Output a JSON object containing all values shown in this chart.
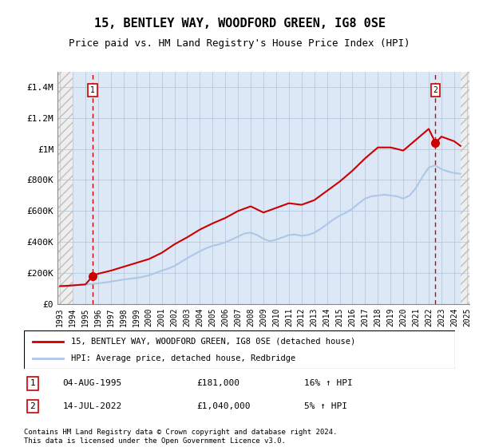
{
  "title": "15, BENTLEY WAY, WOODFORD GREEN, IG8 0SE",
  "subtitle": "Price paid vs. HM Land Registry's House Price Index (HPI)",
  "legend_line1": "15, BENTLEY WAY, WOODFORD GREEN, IG8 0SE (detached house)",
  "legend_line2": "HPI: Average price, detached house, Redbridge",
  "annotation1": {
    "num": "1",
    "date": "04-AUG-1995",
    "price": "£181,000",
    "hpi": "16% ↑ HPI",
    "x_year": 1995.58,
    "y_val": 181000
  },
  "annotation2": {
    "num": "2",
    "date": "14-JUL-2022",
    "price": "£1,040,000",
    "hpi": "5% ↑ HPI",
    "x_year": 2022.53,
    "y_val": 1040000
  },
  "footer1": "Contains HM Land Registry data © Crown copyright and database right 2024.",
  "footer2": "This data is licensed under the Open Government Licence v3.0.",
  "ylim": [
    0,
    1500000
  ],
  "yticks": [
    0,
    200000,
    400000,
    600000,
    800000,
    1000000,
    1200000,
    1400000
  ],
  "ytick_labels": [
    "£0",
    "£200K",
    "£400K",
    "£600K",
    "£800K",
    "£1M",
    "£1.2M",
    "£1.4M"
  ],
  "hpi_color": "#aec6e8",
  "price_color": "#cc0000",
  "dashed_color": "#cc0000",
  "background_hatch_color": "#d0d0d0",
  "grid_color": "#b0c4de",
  "hpi_years": [
    1993,
    1993.5,
    1994,
    1994.5,
    1995,
    1995.5,
    1996,
    1996.5,
    1997,
    1997.5,
    1998,
    1998.5,
    1999,
    1999.5,
    2000,
    2000.5,
    2001,
    2001.5,
    2002,
    2002.5,
    2003,
    2003.5,
    2004,
    2004.5,
    2005,
    2005.5,
    2006,
    2006.5,
    2007,
    2007.5,
    2008,
    2008.5,
    2009,
    2009.5,
    2010,
    2010.5,
    2011,
    2011.5,
    2012,
    2012.5,
    2013,
    2013.5,
    2014,
    2014.5,
    2015,
    2015.5,
    2016,
    2016.5,
    2017,
    2017.5,
    2018,
    2018.5,
    2019,
    2019.5,
    2020,
    2020.5,
    2021,
    2021.5,
    2022,
    2022.5,
    2023,
    2023.5,
    2024,
    2024.5
  ],
  "hpi_values": [
    115000,
    117000,
    120000,
    123000,
    126000,
    129000,
    133000,
    138000,
    144000,
    151000,
    158000,
    163000,
    168000,
    175000,
    185000,
    200000,
    215000,
    228000,
    245000,
    270000,
    295000,
    318000,
    340000,
    360000,
    375000,
    385000,
    398000,
    415000,
    435000,
    455000,
    460000,
    445000,
    420000,
    405000,
    415000,
    430000,
    445000,
    448000,
    440000,
    445000,
    460000,
    485000,
    515000,
    545000,
    570000,
    590000,
    615000,
    650000,
    680000,
    695000,
    700000,
    705000,
    700000,
    695000,
    680000,
    700000,
    750000,
    820000,
    880000,
    895000,
    870000,
    855000,
    845000,
    840000
  ],
  "price_years": [
    1993,
    1993.5,
    1994,
    1994.5,
    1995,
    1995.58,
    1996,
    1997,
    1998,
    1999,
    2000,
    2001,
    2002,
    2003,
    2004,
    2005,
    2006,
    2007,
    2008,
    2009,
    2010,
    2011,
    2012,
    2013,
    2014,
    2015,
    2016,
    2017,
    2018,
    2019,
    2020,
    2021,
    2022,
    2022.53,
    2023,
    2024,
    2024.5
  ],
  "price_values": [
    115000,
    117000,
    120000,
    123000,
    126000,
    181000,
    195000,
    215000,
    240000,
    265000,
    290000,
    330000,
    385000,
    430000,
    480000,
    520000,
    555000,
    600000,
    630000,
    590000,
    620000,
    650000,
    640000,
    670000,
    730000,
    790000,
    860000,
    940000,
    1010000,
    1010000,
    990000,
    1060000,
    1130000,
    1040000,
    1080000,
    1050000,
    1020000
  ],
  "xtick_years": [
    1993,
    1994,
    1995,
    1996,
    1997,
    1998,
    1999,
    2000,
    2001,
    2002,
    2003,
    2004,
    2005,
    2006,
    2007,
    2008,
    2009,
    2010,
    2011,
    2012,
    2013,
    2014,
    2015,
    2016,
    2017,
    2018,
    2019,
    2020,
    2021,
    2022,
    2023,
    2024,
    2025
  ]
}
